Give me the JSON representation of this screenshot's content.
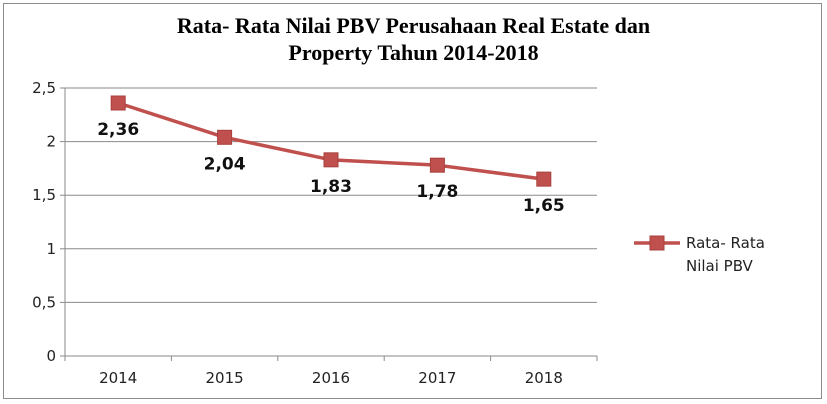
{
  "chart_data": {
    "type": "line",
    "title_lines": [
      "Rata- Rata Nilai PBV Perusahaan Real Estate dan",
      "Property Tahun 2014-2018"
    ],
    "categories": [
      "2014",
      "2015",
      "2016",
      "2017",
      "2018"
    ],
    "series": [
      {
        "name": "Rata- Rata Nilai PBV",
        "legend_lines": [
          "Rata- Rata",
          "Nilai PBV"
        ],
        "values": [
          2.36,
          2.04,
          1.83,
          1.78,
          1.65
        ],
        "data_labels": [
          "2,36",
          "2,04",
          "1,83",
          "1,78",
          "1,65"
        ],
        "color": "#c0504d"
      }
    ],
    "ylim": [
      0,
      2.5
    ],
    "yticks": [
      0,
      0.5,
      1,
      1.5,
      2,
      2.5
    ],
    "ytick_labels": [
      "0",
      "0,5",
      "1",
      "1,5",
      "2",
      "2,5"
    ],
    "grid": "horizontal",
    "legend_position": "right",
    "marker": "square"
  }
}
